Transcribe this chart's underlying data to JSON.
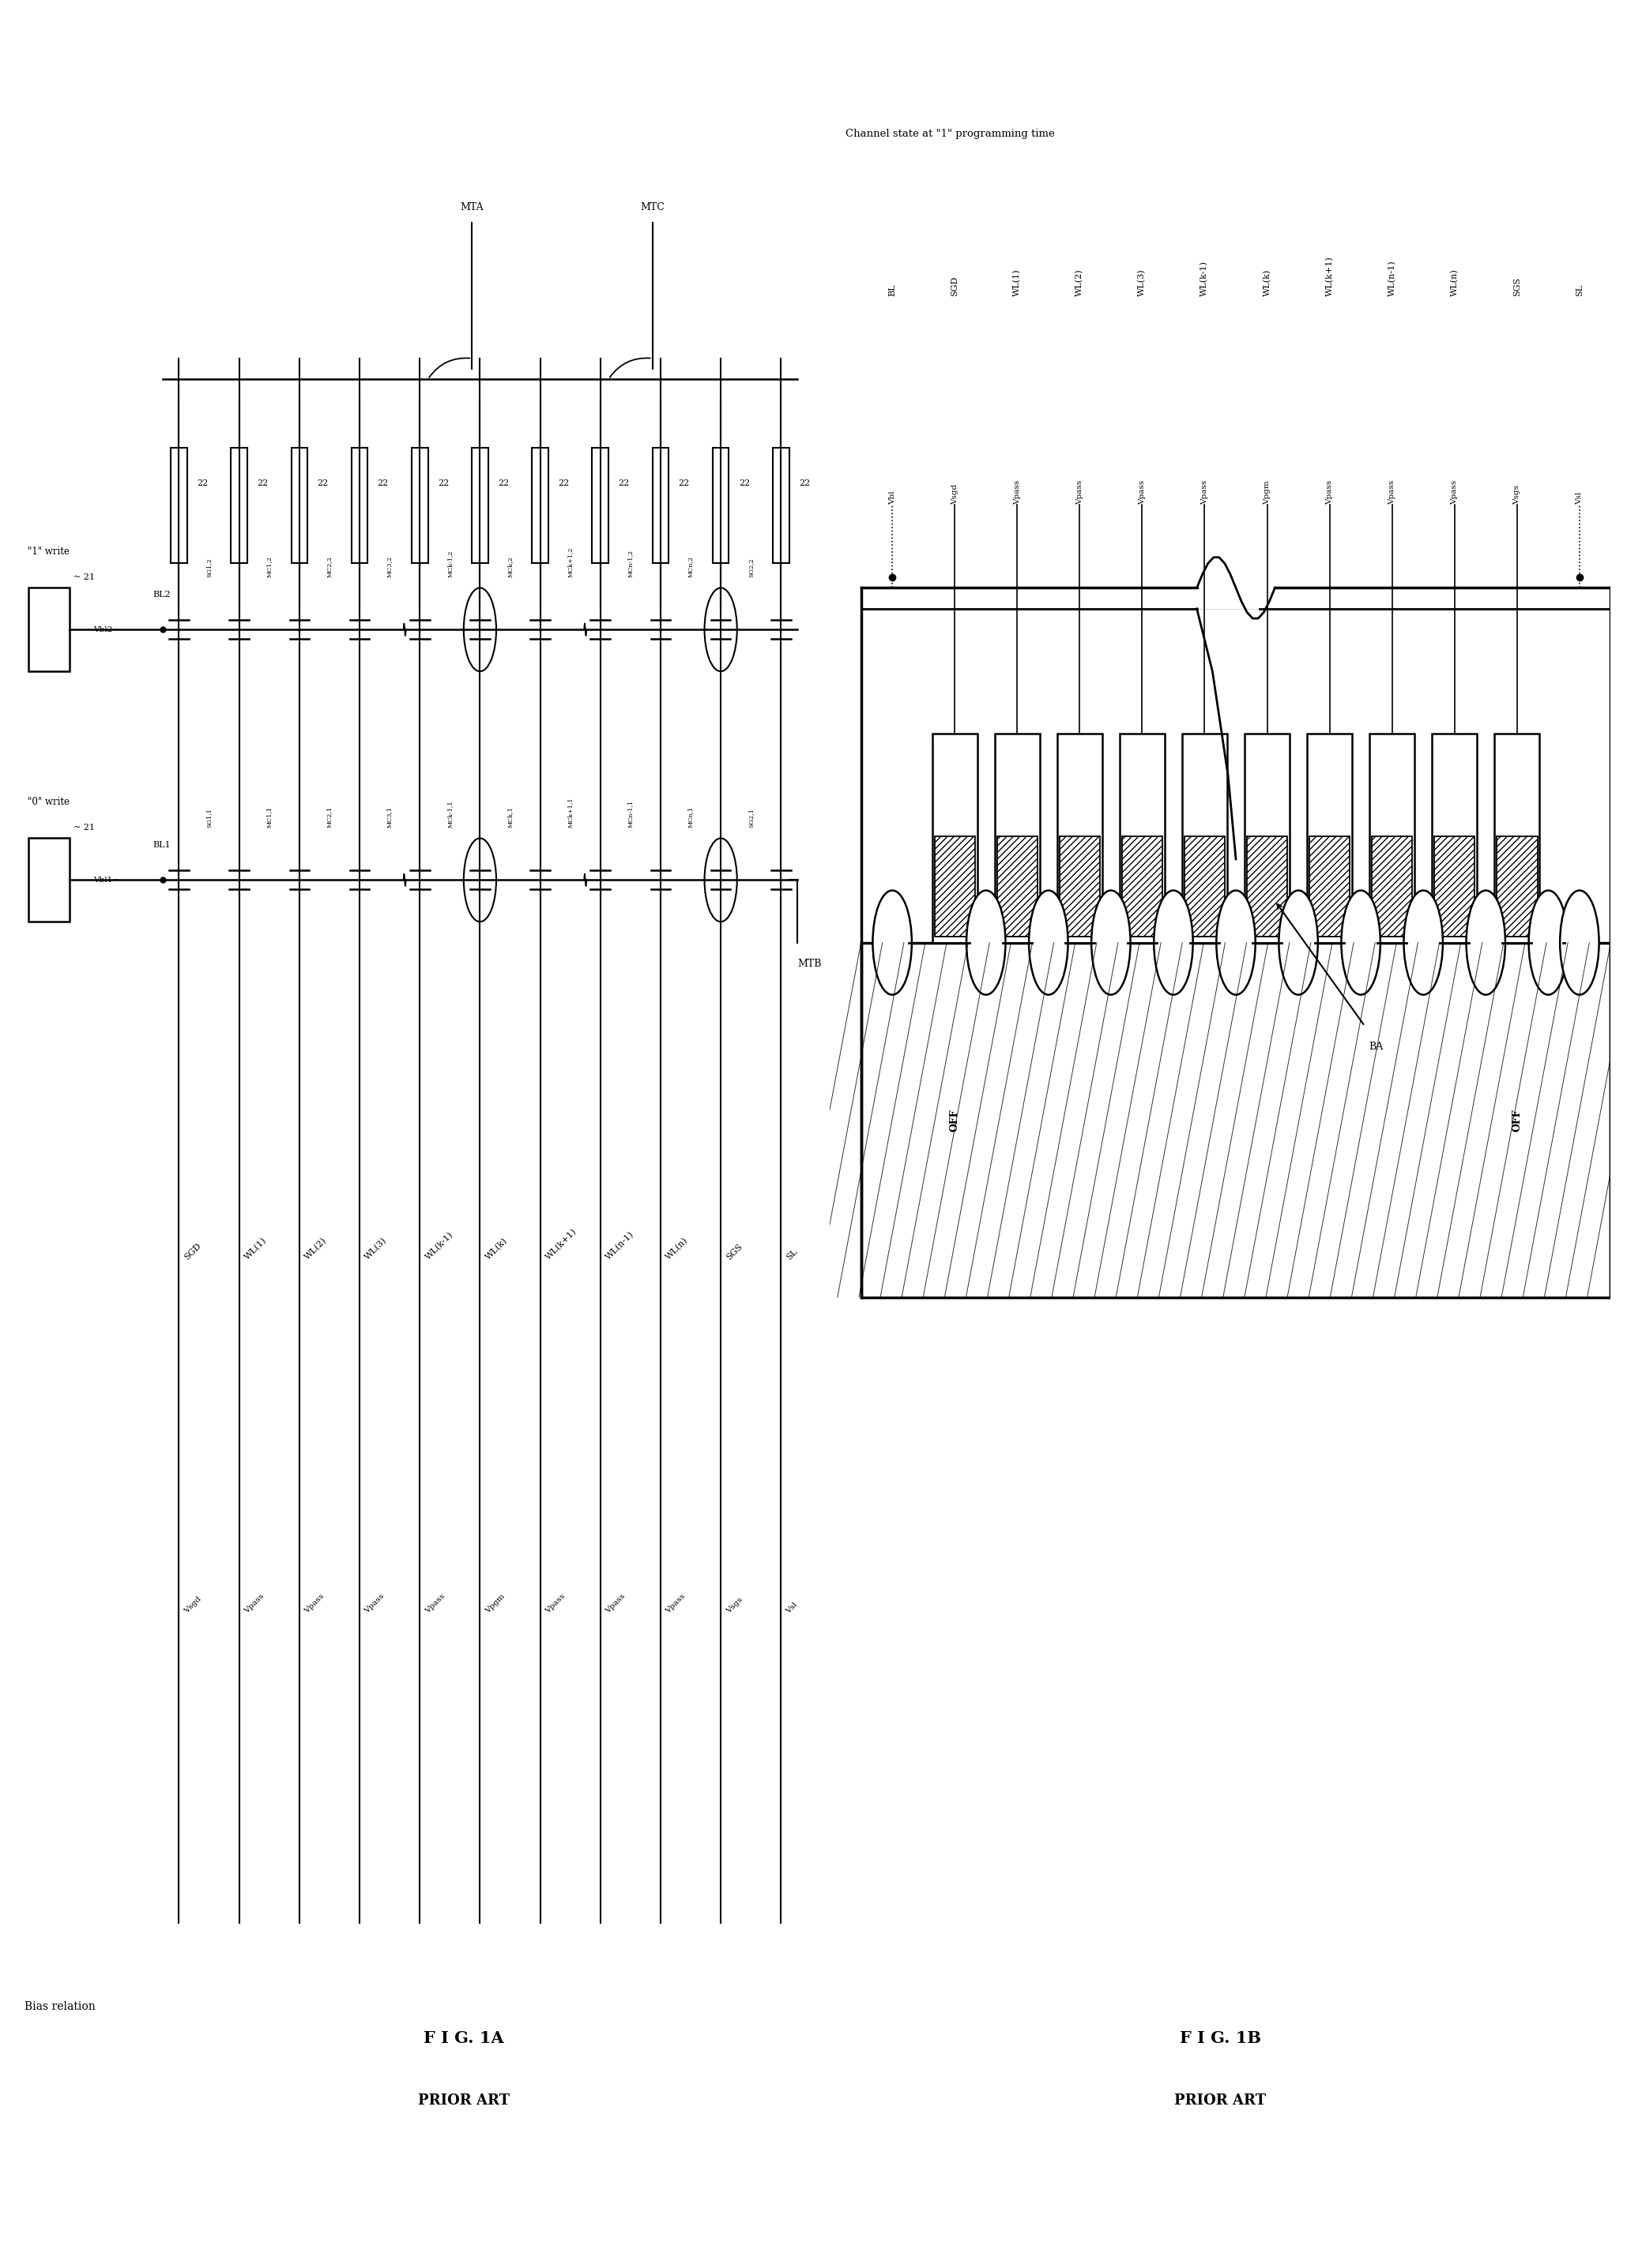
{
  "fig_width": 20.59,
  "fig_height": 28.72,
  "bg_color": "#ffffff",
  "left_panel": {
    "title": "Bias relation",
    "fig_label": "F I G. 1A",
    "fig_sublabel": "PRIOR ART",
    "wl_names": [
      "SGD",
      "WL(1)",
      "WL(2)",
      "WL(3)",
      "WL(k-1)",
      "WL(k)",
      "WL(k+1)",
      "WL(n-1)",
      "WL(n)",
      "SGS",
      "SL"
    ],
    "bias_names": [
      "Vsgd",
      "Vpass",
      "Vpass",
      "Vpass",
      "Vpass",
      "Vpgm",
      "Vpass",
      "Vpass",
      "Vpass",
      "Vsgs",
      "Vsl"
    ],
    "node_r1": [
      "SG1,1",
      "MC1,1",
      "MC2,1",
      "MC3,1",
      "MCk-1,1",
      "MCk,1",
      "MCk+1,1",
      "MCn-1,1",
      "MCn,1",
      "SG2,1"
    ],
    "node_r2": [
      "SG1,2",
      "MC1,2",
      "MC2,2",
      "MC3,2",
      "MCk-1,2",
      "MCk,2",
      "MCk+1,2",
      "MCn-1,2",
      "MCn,2",
      "SG2,2"
    ],
    "resistor_num": "22",
    "write0": "\"0\" write",
    "write1": "\"1\" write",
    "bl1": "BL1",
    "bl2": "BL2",
    "vbl1": "Vbl1~",
    "vbl2": "Vbl2~",
    "ref21_0": "~ 21",
    "ref21_1": "~ 21",
    "mtb": "MTB",
    "mta": "MTA",
    "mtc": "MTC"
  },
  "right_panel": {
    "title": "Channel state at \"1\" programming time",
    "fig_label": "F I G. 1B",
    "fig_sublabel": "PRIOR ART",
    "col_labels": [
      "BL",
      "SGD",
      "WL(1)",
      "WL(2)",
      "WL(3)",
      "WL(k-1)",
      "WL(k)",
      "WL(k+1)",
      "WL(n-1)",
      "WL(n)",
      "SGS",
      "SL"
    ],
    "bias_labels": [
      "Vbl",
      "Vsgd",
      "Vpass",
      "Vpass",
      "Vpass",
      "Vpass",
      "Vpgm",
      "Vpass",
      "Vpass",
      "Vpass",
      "Vsgs",
      "Vsl"
    ],
    "off_left": "OFF",
    "off_right": "OFF",
    "ba": "BA"
  }
}
